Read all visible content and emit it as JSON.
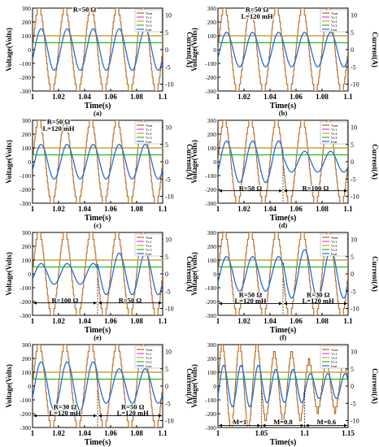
{
  "figure": {
    "caption": ""
  },
  "colors": {
    "vout": "#b5651d",
    "vc1": "#e040e0",
    "vc2": "#b8b020",
    "vc3": "#22bb22",
    "iout": "#1e6fd9"
  },
  "chart_data": [
    {
      "panel": "(a)",
      "type": "line",
      "xlabel": "Time(s)",
      "ylabel": "Voltage(Volts)",
      "y2label": "Current(A)",
      "xlim": [
        1,
        1.1
      ],
      "ylim": [
        -300,
        300
      ],
      "y2lim": [
        -12,
        12
      ],
      "xticks": [
        "1",
        "1.02",
        "1.04",
        "1.06",
        "1.08",
        "1.1"
      ],
      "yticks": [
        "300",
        "200",
        "100",
        "0",
        "-100",
        "-200",
        "-300"
      ],
      "y2ticks": [
        "10",
        "5",
        "0",
        "-5",
        "-10"
      ],
      "legend": [
        "Vout",
        "Vc1",
        "Vc2",
        "Vc3",
        "Iout"
      ],
      "legend_position": "top-right",
      "series": [
        {
          "name": "Vout",
          "kind": "staircase",
          "amplitude": 300,
          "frequency_hz": 50,
          "levels": 6
        },
        {
          "name": "Vc1",
          "kind": "dc",
          "value": 100
        },
        {
          "name": "Vc2",
          "kind": "dc",
          "value": 100
        },
        {
          "name": "Vc3",
          "kind": "dc",
          "value": 50
        },
        {
          "name": "Iout",
          "kind": "sine",
          "amplitude_A": 6,
          "frequency_hz": 50
        }
      ],
      "annotations": [
        {
          "text": "R=50 Ω",
          "x": 1.04,
          "y": 290
        }
      ]
    },
    {
      "panel": "(b)",
      "type": "line",
      "xlabel": "Time(s)",
      "ylabel": "Voltage(Volts)",
      "y2label": "Current(A)",
      "xlim": [
        1,
        1.1
      ],
      "ylim": [
        -300,
        300
      ],
      "y2lim": [
        -12,
        12
      ],
      "xticks": [
        "1",
        "1.02",
        "1.04",
        "1.06",
        "1.08",
        "1.1"
      ],
      "yticks": [
        "300",
        "200",
        "100",
        "0",
        "-100",
        "-200",
        "-300"
      ],
      "y2ticks": [
        "10",
        "5",
        "0",
        "-5",
        "-10"
      ],
      "legend": [
        "Vout",
        "Vc1",
        "Vc2",
        "Vc3",
        "Iout"
      ],
      "legend_position": "top-right",
      "series": [
        {
          "name": "Vout",
          "kind": "staircase",
          "amplitude": 300,
          "frequency_hz": 50,
          "levels": 6
        },
        {
          "name": "Vc1",
          "kind": "dc",
          "value": 100
        },
        {
          "name": "Vc2",
          "kind": "dc",
          "value": 100
        },
        {
          "name": "Vc3",
          "kind": "dc",
          "value": 50
        },
        {
          "name": "Iout",
          "kind": "sine",
          "amplitude_A": 5,
          "frequency_hz": 50
        }
      ],
      "annotations": [
        {
          "text": "R=50 Ω",
          "x": 1.03,
          "y": 290
        },
        {
          "text": "L=120 mH",
          "x": 1.03,
          "y": 240
        }
      ]
    },
    {
      "panel": "(c)",
      "type": "line",
      "xlabel": "Time(s)",
      "ylabel": "Voltage(Volts)",
      "y2label": "Current(A)",
      "xlim": [
        1,
        1.1
      ],
      "ylim": [
        -300,
        300
      ],
      "y2lim": [
        -12,
        12
      ],
      "xticks": [
        "1",
        "1.02",
        "1.04",
        "1.06",
        "1.08",
        "1.1"
      ],
      "yticks": [
        "300",
        "200",
        "100",
        "0",
        "-100",
        "-200",
        "-300"
      ],
      "y2ticks": [
        "10",
        "5",
        "0",
        "-5",
        "-10"
      ],
      "legend": [
        "Vout",
        "Vc1",
        "Vc2",
        "Vc3",
        "Iout"
      ],
      "legend_position": "top-right",
      "series": [
        {
          "name": "Vout",
          "kind": "staircase",
          "amplitude": 300,
          "frequency_hz": 50,
          "levels": 6
        },
        {
          "name": "Vc1",
          "kind": "dc",
          "value": 100
        },
        {
          "name": "Vc2",
          "kind": "dc",
          "value": 100
        },
        {
          "name": "Vc3",
          "kind": "dc",
          "value": 50
        },
        {
          "name": "Iout",
          "kind": "sine",
          "amplitude_A": 5,
          "frequency_hz": 50
        }
      ],
      "annotations": [
        {
          "text": "R=50 Ω",
          "x": 1.02,
          "y": 290
        },
        {
          "text": "L=120 mH",
          "x": 1.02,
          "y": 240
        }
      ]
    },
    {
      "panel": "(d)",
      "type": "line",
      "xlabel": "Time(s)",
      "ylabel": "Voltage(Volts)",
      "y2label": "Current(A)",
      "xlim": [
        1,
        1.1
      ],
      "ylim": [
        -300,
        300
      ],
      "y2lim": [
        -12,
        12
      ],
      "xticks": [
        "1",
        "1.02",
        "1.04",
        "1.06",
        "1.08",
        "1.1"
      ],
      "yticks": [
        "300",
        "200",
        "100",
        "0",
        "-100",
        "-200",
        "-300"
      ],
      "y2ticks": [
        "10",
        "5",
        "0",
        "-5",
        "-10"
      ],
      "legend": [
        "Vout",
        "Vc1",
        "Vc2",
        "Vc3",
        "Iout"
      ],
      "legend_position": "top-right",
      "series": [
        {
          "name": "Vout",
          "kind": "staircase",
          "amplitude": 300,
          "frequency_hz": 50,
          "levels": 6
        },
        {
          "name": "Vc1",
          "kind": "dc",
          "value": 100
        },
        {
          "name": "Vc2",
          "kind": "dc",
          "value": 100
        },
        {
          "name": "Vc3",
          "kind": "dc",
          "value": 50
        },
        {
          "name": "Iout",
          "kind": "sine",
          "amplitude_A": 6,
          "amplitude_after_A": 3,
          "change_at_s": 1.05,
          "frequency_hz": 50
        }
      ],
      "annotations": [
        {
          "text": "R=50 Ω",
          "x": 1.025,
          "y": -190
        },
        {
          "text": "R=100 Ω",
          "x": 1.075,
          "y": -190
        }
      ]
    },
    {
      "panel": "(e)",
      "type": "line",
      "xlabel": "Time(s)",
      "ylabel": "Voltage(Volts)",
      "y2label": "Current(A)",
      "xlim": [
        1,
        1.1
      ],
      "ylim": [
        -300,
        300
      ],
      "y2lim": [
        -12,
        12
      ],
      "xticks": [
        "1",
        "1.02",
        "1.04",
        "1.06",
        "1.08",
        "1.1"
      ],
      "yticks": [
        "300",
        "200",
        "100",
        "0",
        "-100",
        "-200",
        "-300"
      ],
      "y2ticks": [
        "10",
        "5",
        "0",
        "-5",
        "-10"
      ],
      "legend": [
        "Vout",
        "Vc1",
        "Vc2",
        "Vc3",
        "Iout"
      ],
      "legend_position": "top-right",
      "series": [
        {
          "name": "Vout",
          "kind": "staircase",
          "amplitude": 300,
          "frequency_hz": 50,
          "levels": 6
        },
        {
          "name": "Vc1",
          "kind": "dc",
          "value": 100
        },
        {
          "name": "Vc2",
          "kind": "dc",
          "value": 100
        },
        {
          "name": "Vc3",
          "kind": "dc",
          "value": 50
        },
        {
          "name": "Iout",
          "kind": "sine",
          "amplitude_A": 3,
          "amplitude_after_A": 6,
          "change_at_s": 1.05,
          "frequency_hz": 50
        }
      ],
      "annotations": [
        {
          "text": "R=100 Ω",
          "x": 1.025,
          "y": -190
        },
        {
          "text": "R=50 Ω",
          "x": 1.075,
          "y": -190
        }
      ]
    },
    {
      "panel": "(f)",
      "type": "line",
      "xlabel": "Time(s)",
      "ylabel": "Voltage(Volts)",
      "y2label": "Current(A)",
      "xlim": [
        1,
        1.1
      ],
      "ylim": [
        -300,
        300
      ],
      "y2lim": [
        -12,
        12
      ],
      "xticks": [
        "1",
        "1.02",
        "1.04",
        "1.06",
        "1.08",
        "1.1"
      ],
      "yticks": [
        "300",
        "200",
        "100",
        "0",
        "-100",
        "-200",
        "-300"
      ],
      "y2ticks": [
        "10",
        "5",
        "0",
        "-5",
        "-10"
      ],
      "legend": [
        "Vout",
        "Vc1",
        "Vc2",
        "Vc3",
        "Iout"
      ],
      "legend_position": "top-right",
      "series": [
        {
          "name": "Vout",
          "kind": "staircase",
          "amplitude": 300,
          "frequency_hz": 50,
          "levels": 6
        },
        {
          "name": "Vc1",
          "kind": "dc",
          "value": 100
        },
        {
          "name": "Vc2",
          "kind": "dc",
          "value": 100
        },
        {
          "name": "Vc3",
          "kind": "dc",
          "value": 50
        },
        {
          "name": "Iout",
          "kind": "sine",
          "amplitude_A": 5,
          "amplitude_after_A": 7,
          "change_at_s": 1.05,
          "frequency_hz": 50
        }
      ],
      "annotations": [
        {
          "text": "R=50 Ω",
          "x": 1.025,
          "y": -150
        },
        {
          "text": "L=120 mH",
          "x": 1.025,
          "y": -195
        },
        {
          "text": "R=30 Ω",
          "x": 1.077,
          "y": -150
        },
        {
          "text": "L=120 mH",
          "x": 1.077,
          "y": -195
        }
      ]
    },
    {
      "panel": "(g)",
      "type": "line",
      "xlabel": "Time(s)",
      "ylabel": "Voltage(Volts)",
      "y2label": "Current(A)",
      "xlim": [
        1,
        1.1
      ],
      "ylim": [
        -300,
        300
      ],
      "y2lim": [
        -12,
        12
      ],
      "xticks": [
        "1",
        "1.02",
        "1.04",
        "1.06",
        "1.08",
        "1.1"
      ],
      "yticks": [
        "300",
        "200",
        "100",
        "0",
        "-100",
        "-200",
        "-300"
      ],
      "y2ticks": [
        "10",
        "5",
        "0",
        "-5",
        "-10"
      ],
      "legend": [
        "Vout",
        "Vc1",
        "Vc2",
        "Vc3",
        "Iout"
      ],
      "legend_position": "top-right",
      "series": [
        {
          "name": "Vout",
          "kind": "staircase",
          "amplitude": 300,
          "frequency_hz": 50,
          "levels": 6
        },
        {
          "name": "Vc1",
          "kind": "dc",
          "value": 100
        },
        {
          "name": "Vc2",
          "kind": "dc",
          "value": 100
        },
        {
          "name": "Vc3",
          "kind": "dc",
          "value": 50
        },
        {
          "name": "Iout",
          "kind": "sine",
          "amplitude_A": 7,
          "amplitude_after_A": 5,
          "change_at_s": 1.05,
          "frequency_hz": 50
        }
      ],
      "annotations": [
        {
          "text": "R=30 Ω",
          "x": 1.025,
          "y": -150
        },
        {
          "text": "L=120 mH",
          "x": 1.025,
          "y": -195
        },
        {
          "text": "R=50 Ω",
          "x": 1.077,
          "y": -150
        },
        {
          "text": "L=120 mH",
          "x": 1.077,
          "y": -195
        }
      ]
    },
    {
      "panel": "(h)",
      "type": "line",
      "xlabel": "Time(s)",
      "ylabel": "Voltage(Volts)",
      "y2label": "Current(A)",
      "xlim": [
        1,
        1.15
      ],
      "ylim": [
        -300,
        300
      ],
      "y2lim": [
        -12,
        12
      ],
      "xticks": [
        "1",
        "1.05",
        "1.1",
        "1.15"
      ],
      "yticks": [
        "300",
        "200",
        "100",
        "0",
        "-100",
        "-200",
        "-300"
      ],
      "y2ticks": [
        "10",
        "5",
        "0",
        "-5",
        "-10"
      ],
      "legend": [
        "Vout",
        "Vc1",
        "Vc2",
        "Vc3",
        "Iout"
      ],
      "legend_position": "top-right",
      "series": [
        {
          "name": "Vout",
          "kind": "staircase",
          "amplitude": 300,
          "frequency_hz": 50,
          "levels": 6,
          "modulation_index": [
            1,
            0.8,
            0.6
          ],
          "segments_s": [
            1,
            1.05,
            1.1,
            1.15
          ]
        },
        {
          "name": "Vc1",
          "kind": "dc",
          "value": 100
        },
        {
          "name": "Vc2",
          "kind": "dc",
          "value": 100
        },
        {
          "name": "Vc3",
          "kind": "dc",
          "value": 50
        },
        {
          "name": "Iout",
          "kind": "sine",
          "amplitude_A": 6,
          "frequency_hz": 50,
          "modulation_index": [
            1,
            0.8,
            0.6
          ],
          "segments_s": [
            1,
            1.05,
            1.1,
            1.15
          ]
        }
      ],
      "annotations": [
        {
          "text": "M=1",
          "x": 1.025,
          "y": -260
        },
        {
          "text": "M=0.8",
          "x": 1.075,
          "y": -260
        },
        {
          "text": "M=0.6",
          "x": 1.125,
          "y": -260
        }
      ]
    }
  ]
}
